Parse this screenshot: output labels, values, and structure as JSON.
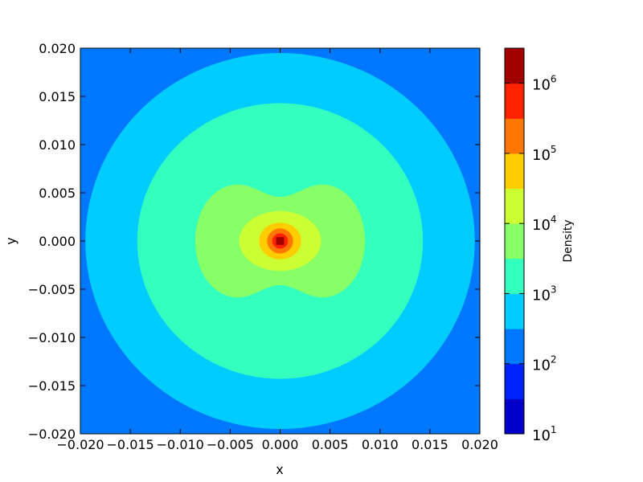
{
  "chart_data": {
    "type": "contourf",
    "xlabel": "x",
    "ylabel": "y",
    "xlim": [
      -0.02,
      0.02
    ],
    "ylim": [
      -0.02,
      0.02
    ],
    "x_ticks": [
      -0.02,
      -0.015,
      -0.01,
      -0.005,
      0.0,
      0.005,
      0.01,
      0.015,
      0.02
    ],
    "x_tick_labels": [
      "−0.020",
      "−0.015",
      "−0.010",
      "−0.005",
      "0.000",
      "0.005",
      "0.010",
      "0.015",
      "0.020"
    ],
    "y_ticks": [
      0.02,
      0.015,
      0.01,
      0.005,
      0.0,
      -0.005,
      -0.01,
      -0.015,
      -0.02
    ],
    "y_tick_labels": [
      "0.020",
      "0.015",
      "0.010",
      "0.005",
      "0.000",
      "−0.005",
      "−0.010",
      "−0.015",
      "−0.020"
    ],
    "grid": false,
    "colorbar": {
      "label": "Density",
      "scale": "log",
      "range": [
        10,
        3162277.66
      ],
      "ticks": [
        {
          "base": "10",
          "exp": "1",
          "value": 10
        },
        {
          "base": "10",
          "exp": "2",
          "value": 100
        },
        {
          "base": "10",
          "exp": "3",
          "value": 1000
        },
        {
          "base": "10",
          "exp": "4",
          "value": 10000
        },
        {
          "base": "10",
          "exp": "5",
          "value": 100000
        },
        {
          "base": "10",
          "exp": "6",
          "value": 1000000
        }
      ],
      "levels": [
        {
          "from": 10,
          "to": 31.6,
          "color": "#0000c8"
        },
        {
          "from": 31.6,
          "to": 100,
          "color": "#0022ff"
        },
        {
          "from": 100,
          "to": 316,
          "color": "#0077ff"
        },
        {
          "from": 316,
          "to": 1000,
          "color": "#00ccff"
        },
        {
          "from": 1000,
          "to": 3162,
          "color": "#33ffbf"
        },
        {
          "from": 3162,
          "to": 10000,
          "color": "#88ff66"
        },
        {
          "from": 10000,
          "to": 31623,
          "color": "#ccff33"
        },
        {
          "from": 31623,
          "to": 100000,
          "color": "#ffcc00"
        },
        {
          "from": 100000,
          "to": 316228,
          "color": "#ff7700"
        },
        {
          "from": 316228,
          "to": 1000000,
          "color": "#ff2200"
        },
        {
          "from": 1000000,
          "to": 3162278,
          "color": "#a00000"
        }
      ]
    },
    "regions": [
      {
        "level": "100-316",
        "shape": "background",
        "color": "#0077ff"
      },
      {
        "level": "316-1000",
        "shape": "circle",
        "radius": 0.0195,
        "color": "#00ccff"
      },
      {
        "level": "1000-3162",
        "shape": "circle",
        "radius": 0.0143,
        "color": "#33ffbf"
      },
      {
        "level": "3162-10000",
        "shape": "peanut",
        "half_width": 0.0085,
        "color": "#88ff66"
      },
      {
        "level": "10000-31623",
        "shape": "ellipse",
        "rx": 0.0041,
        "ry": 0.0031,
        "color": "#ccff33"
      },
      {
        "level": "31623-100000",
        "shape": "ellipse",
        "rx": 0.0021,
        "ry": 0.0019,
        "color": "#ffcc00"
      },
      {
        "level": "100000-316228",
        "shape": "ellipse",
        "rx": 0.0013,
        "ry": 0.0013,
        "color": "#ff7700"
      },
      {
        "level": "316228-1000000",
        "shape": "ellipse",
        "rx": 0.0008,
        "ry": 0.0008,
        "color": "#ff2200"
      },
      {
        "level": "1000000+",
        "shape": "square",
        "half_width": 0.0004,
        "color": "#a00000"
      }
    ]
  }
}
